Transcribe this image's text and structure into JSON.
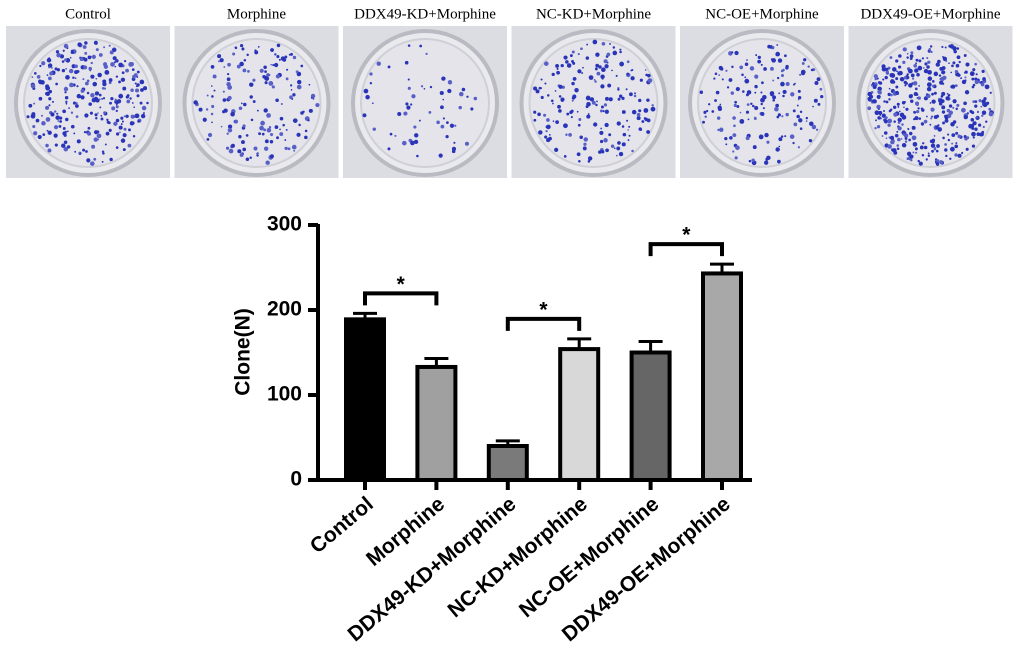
{
  "plate_labels": [
    "Control",
    "Morphine",
    "DDX49-KD+Morphine",
    "NC-KD+Morphine",
    "NC-OE+Morphine",
    "DDX49-OE+Morphine"
  ],
  "chart_data": {
    "type": "bar",
    "ylabel": "Clone(N)",
    "categories": [
      "Control",
      "Morphine",
      "DDX49-KD+Morphine",
      "NC-KD+Morphine",
      "NC-OE+Morphine",
      "DDX49-OE+Morphine"
    ],
    "values": [
      189,
      133,
      40,
      154,
      150,
      243
    ],
    "errors": [
      7,
      10,
      6,
      12,
      13,
      11
    ],
    "colors": [
      "#000000",
      "#a0a0a0",
      "#7a7a7a",
      "#d8d8d8",
      "#666666",
      "#a8a8a8"
    ],
    "ylim": [
      0,
      300
    ],
    "yticks": [
      0,
      100,
      200,
      300
    ],
    "significance": [
      {
        "pair": [
          0,
          1
        ],
        "label": "*"
      },
      {
        "pair": [
          2,
          3
        ],
        "label": "*"
      },
      {
        "pair": [
          4,
          5
        ],
        "label": "*"
      }
    ]
  }
}
